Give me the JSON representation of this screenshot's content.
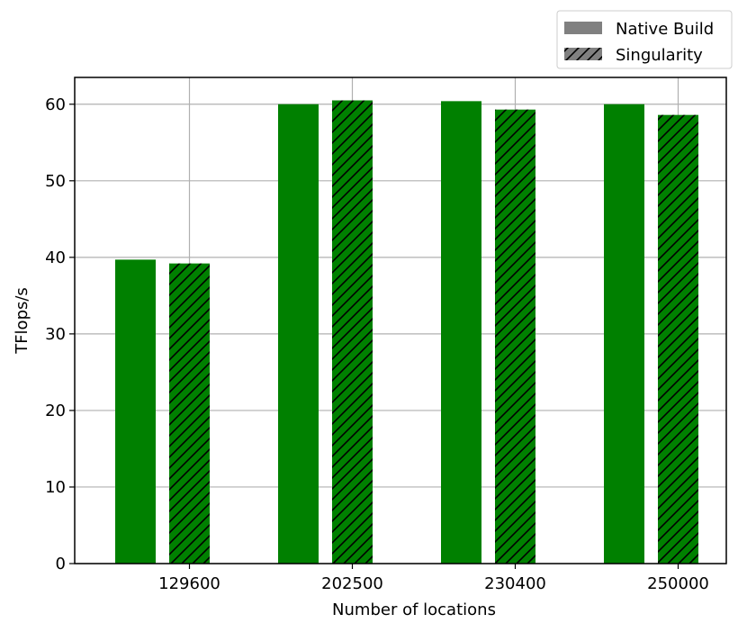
{
  "chart_data": {
    "type": "bar",
    "categories": [
      "129600",
      "202500",
      "230400",
      "250000"
    ],
    "series": [
      {
        "name": "Native Build",
        "values": [
          39.7,
          60.0,
          60.4,
          60.0
        ],
        "color": "#008000",
        "hatch": "none"
      },
      {
        "name": "Singularity",
        "values": [
          39.2,
          60.5,
          59.3,
          58.6
        ],
        "color": "#008000",
        "hatch": "diagonal"
      }
    ],
    "xlabel": "Number of locations",
    "ylabel": "TFlops/s",
    "ylim": [
      0,
      63.5
    ],
    "yticks": [
      0,
      10,
      20,
      30,
      40,
      50,
      60
    ],
    "grid": true,
    "legend": {
      "placement": "top-right-outside",
      "patch_color": "#808080",
      "entries": [
        "Native Build",
        "Singularity"
      ]
    }
  }
}
